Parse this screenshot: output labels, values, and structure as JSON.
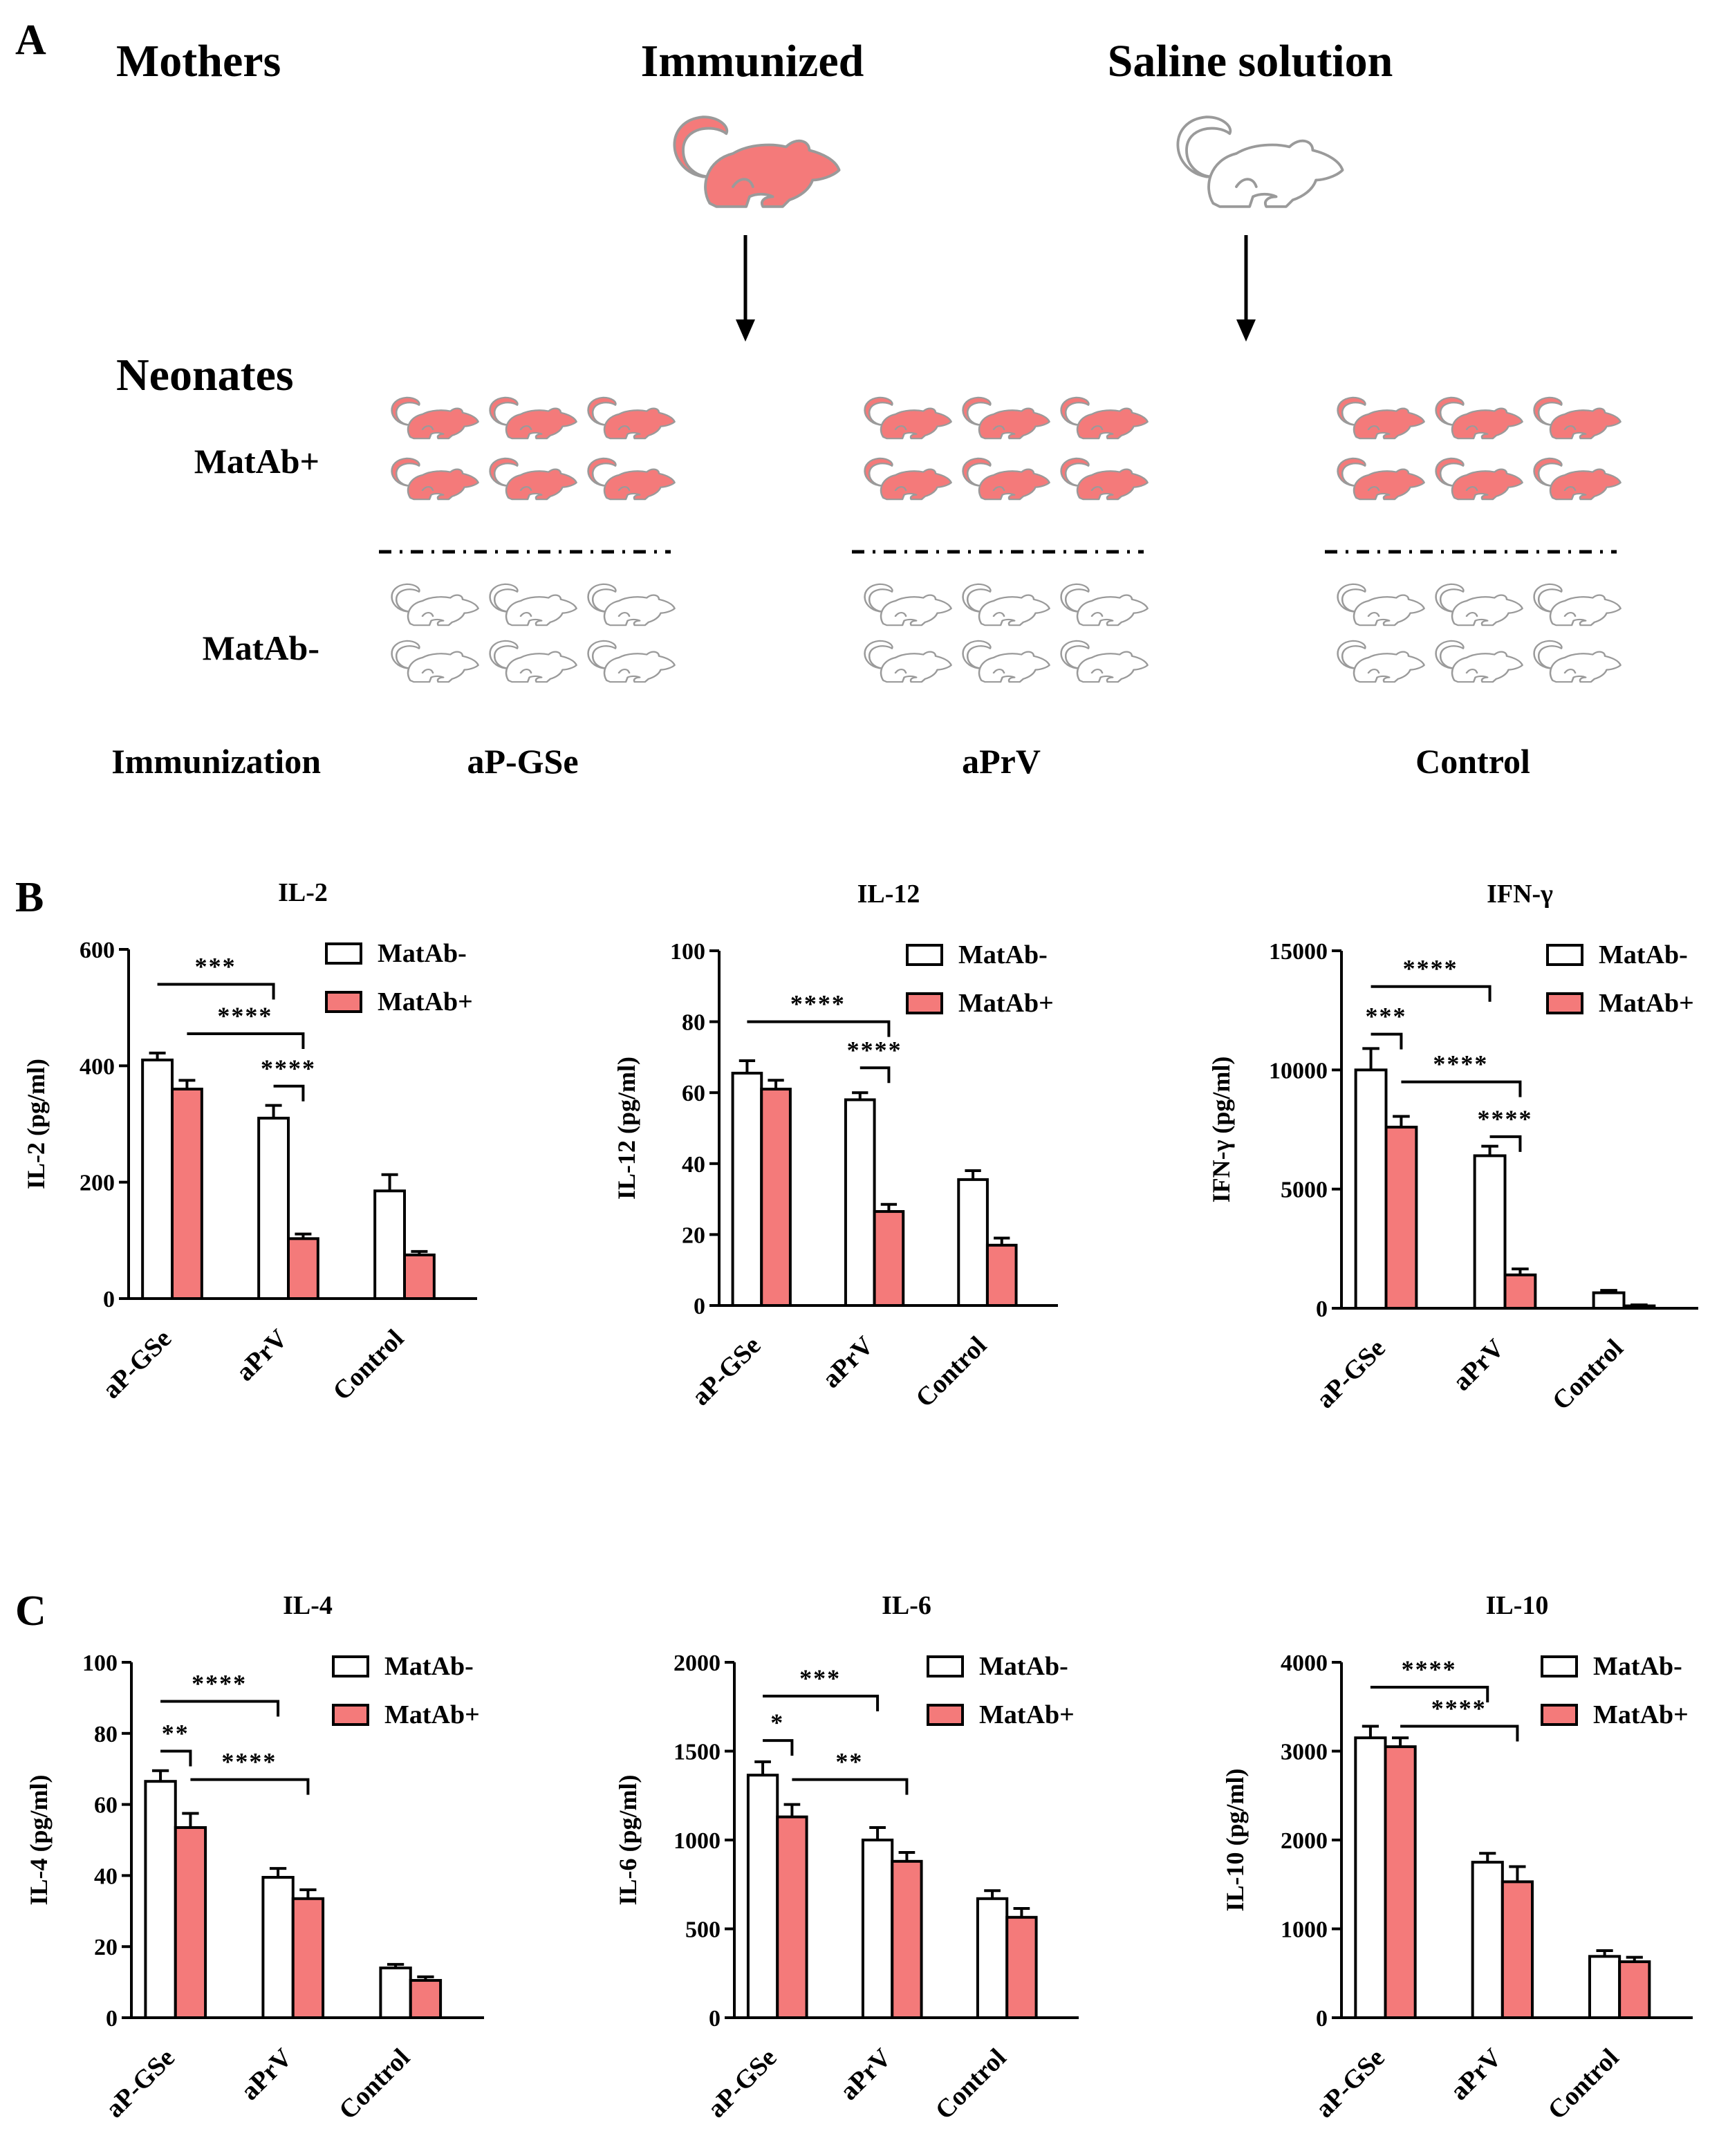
{
  "panels": {
    "a": "A",
    "b": "B",
    "c": "C"
  },
  "schematic": {
    "mothers_label": "Mothers",
    "immunized_label": "Immunized",
    "saline_label": "Saline solution",
    "neonates_label": "Neonates",
    "matab_pos_label": "MatAb+",
    "matab_neg_label": "MatAb-",
    "immunization_label": "Immunization",
    "groups": [
      "aP-GSe",
      "aPrV",
      "Control"
    ]
  },
  "colors": {
    "pos": "#f47a7a",
    "neg": "#ffffff",
    "stroke": "#000000",
    "mouse_outline": "#9a9a9a"
  },
  "legend": {
    "neg": "MatAb-",
    "pos": "MatAb+"
  },
  "chart_data": [
    {
      "type": "bar",
      "panel": "B",
      "title": "IL-2",
      "ylabel": "IL-2 (pg/ml)",
      "categories": [
        "aP-GSe",
        "aPrV",
        "Control"
      ],
      "ylim": [
        0,
        600
      ],
      "yticks": [
        0,
        200,
        400,
        600
      ],
      "series": [
        {
          "name": "MatAb-",
          "values": [
            410,
            310,
            185
          ],
          "errors": [
            12,
            22,
            28
          ]
        },
        {
          "name": "MatAb+",
          "values": [
            360,
            103,
            75
          ],
          "errors": [
            15,
            8,
            6
          ]
        }
      ],
      "significance": [
        {
          "label": "***",
          "from": [
            0,
            0
          ],
          "to": [
            1,
            0
          ],
          "y": 540
        },
        {
          "label": "****",
          "from": [
            0,
            1
          ],
          "to": [
            1,
            1
          ],
          "y": 455
        },
        {
          "label": "****",
          "from": [
            1,
            0
          ],
          "to": [
            1,
            1
          ],
          "y": 365
        }
      ]
    },
    {
      "type": "bar",
      "panel": "B",
      "title": "IL-12",
      "ylabel": "IL-12 (pg/ml)",
      "categories": [
        "aP-GSe",
        "aPrV",
        "Control"
      ],
      "ylim": [
        0,
        100
      ],
      "yticks": [
        0,
        20,
        40,
        60,
        80,
        100
      ],
      "series": [
        {
          "name": "MatAb-",
          "values": [
            65.5,
            58,
            35.5
          ],
          "errors": [
            3.5,
            2,
            2.5
          ]
        },
        {
          "name": "MatAb+",
          "values": [
            61,
            26.5,
            17
          ],
          "errors": [
            2.5,
            2,
            2
          ]
        }
      ],
      "significance": [
        {
          "label": "****",
          "from": [
            0,
            0
          ],
          "to": [
            1,
            1
          ],
          "y": 80
        },
        {
          "label": "****",
          "from": [
            1,
            0
          ],
          "to": [
            1,
            1
          ],
          "y": 67
        }
      ]
    },
    {
      "type": "bar",
      "panel": "B",
      "title": "IFN-γ",
      "ylabel": "IFN-γ (pg/ml)",
      "categories": [
        "aP-GSe",
        "aPrV",
        "Control"
      ],
      "ylim": [
        0,
        15000
      ],
      "yticks": [
        0,
        5000,
        10000,
        15000
      ],
      "series": [
        {
          "name": "MatAb-",
          "values": [
            10000,
            6400,
            650
          ],
          "errors": [
            900,
            400,
            100
          ]
        },
        {
          "name": "MatAb+",
          "values": [
            7600,
            1400,
            100
          ],
          "errors": [
            450,
            250,
            40
          ]
        }
      ],
      "significance": [
        {
          "label": "****",
          "from": [
            0,
            0
          ],
          "to": [
            1,
            0
          ],
          "y": 13500
        },
        {
          "label": "***",
          "from": [
            0,
            0
          ],
          "to": [
            0,
            1
          ],
          "y": 11500
        },
        {
          "label": "****",
          "from": [
            0,
            1
          ],
          "to": [
            1,
            1
          ],
          "y": 9500
        },
        {
          "label": "****",
          "from": [
            1,
            0
          ],
          "to": [
            1,
            1
          ],
          "y": 7200
        }
      ]
    },
    {
      "type": "bar",
      "panel": "C",
      "title": "IL-4",
      "ylabel": "IL-4 (pg/ml)",
      "categories": [
        "aP-GSe",
        "aPrV",
        "Control"
      ],
      "ylim": [
        0,
        100
      ],
      "yticks": [
        0,
        20,
        40,
        60,
        80,
        100
      ],
      "series": [
        {
          "name": "MatAb-",
          "values": [
            66.5,
            39.5,
            14
          ],
          "errors": [
            3,
            2.5,
            1
          ]
        },
        {
          "name": "MatAb+",
          "values": [
            53.5,
            33.5,
            10.5
          ],
          "errors": [
            4,
            2.5,
            1
          ]
        }
      ],
      "significance": [
        {
          "label": "****",
          "from": [
            0,
            0
          ],
          "to": [
            1,
            0
          ],
          "y": 89
        },
        {
          "label": "**",
          "from": [
            0,
            0
          ],
          "to": [
            0,
            1
          ],
          "y": 75
        },
        {
          "label": "****",
          "from": [
            0,
            1
          ],
          "to": [
            1,
            1
          ],
          "y": 67
        }
      ]
    },
    {
      "type": "bar",
      "panel": "C",
      "title": "IL-6",
      "ylabel": "IL-6 (pg/ml)",
      "categories": [
        "aP-GSe",
        "aPrV",
        "Control"
      ],
      "ylim": [
        0,
        2000
      ],
      "yticks": [
        0,
        500,
        1000,
        1500,
        2000
      ],
      "series": [
        {
          "name": "MatAb-",
          "values": [
            1365,
            1000,
            670
          ],
          "errors": [
            75,
            70,
            45
          ]
        },
        {
          "name": "MatAb+",
          "values": [
            1130,
            880,
            565
          ],
          "errors": [
            70,
            50,
            50
          ]
        }
      ],
      "significance": [
        {
          "label": "***",
          "from": [
            0,
            0
          ],
          "to": [
            1,
            0
          ],
          "y": 1810
        },
        {
          "label": "*",
          "from": [
            0,
            0
          ],
          "to": [
            0,
            1
          ],
          "y": 1560
        },
        {
          "label": "**",
          "from": [
            0,
            1
          ],
          "to": [
            1,
            1
          ],
          "y": 1340
        }
      ]
    },
    {
      "type": "bar",
      "panel": "C",
      "title": "IL-10",
      "ylabel": "IL-10 (pg/ml)",
      "categories": [
        "aP-GSe",
        "aPrV",
        "Control"
      ],
      "ylim": [
        0,
        4000
      ],
      "yticks": [
        0,
        1000,
        2000,
        3000,
        4000
      ],
      "series": [
        {
          "name": "MatAb-",
          "values": [
            3150,
            1750,
            690
          ],
          "errors": [
            130,
            100,
            65
          ]
        },
        {
          "name": "MatAb+",
          "values": [
            3050,
            1530,
            630
          ],
          "errors": [
            100,
            170,
            50
          ]
        }
      ],
      "significance": [
        {
          "label": "****",
          "from": [
            0,
            0
          ],
          "to": [
            1,
            0
          ],
          "y": 3720
        },
        {
          "label": "****",
          "from": [
            0,
            1
          ],
          "to": [
            1,
            1
          ],
          "y": 3280
        }
      ]
    }
  ]
}
